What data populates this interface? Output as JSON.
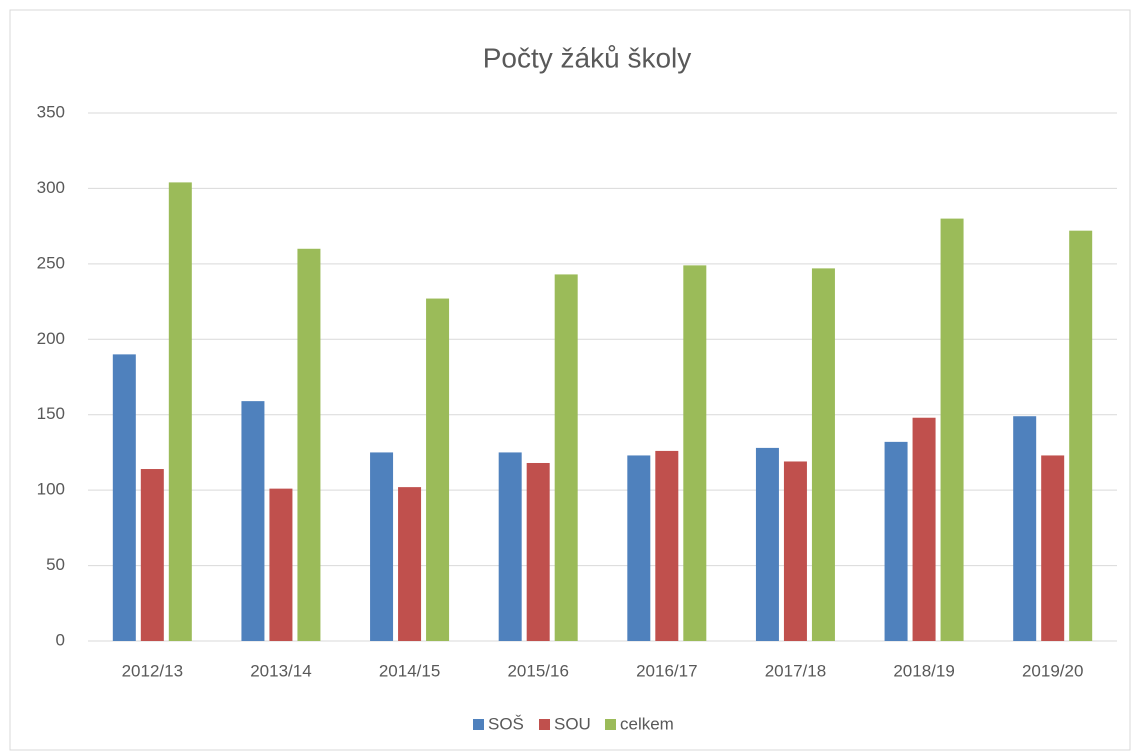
{
  "chart_data": {
    "type": "bar",
    "title": "Počty žáků školy",
    "categories": [
      "2012/13",
      "2013/14",
      "2014/15",
      "2015/16",
      "2016/17",
      "2017/18",
      "2018/19",
      "2019/20"
    ],
    "series": [
      {
        "name": "SOŠ",
        "color": "#4f81bd",
        "values": [
          190,
          159,
          125,
          125,
          123,
          128,
          132,
          149
        ]
      },
      {
        "name": "SOU",
        "color": "#c0504d",
        "values": [
          114,
          101,
          102,
          118,
          126,
          119,
          148,
          123
        ]
      },
      {
        "name": "celkem",
        "color": "#9bbb59",
        "values": [
          304,
          260,
          227,
          243,
          249,
          247,
          280,
          272
        ]
      }
    ],
    "ylim": [
      0,
      350
    ],
    "yticks": [
      0,
      50,
      100,
      150,
      200,
      250,
      300,
      350
    ],
    "grid": true,
    "legend": "bottom"
  }
}
